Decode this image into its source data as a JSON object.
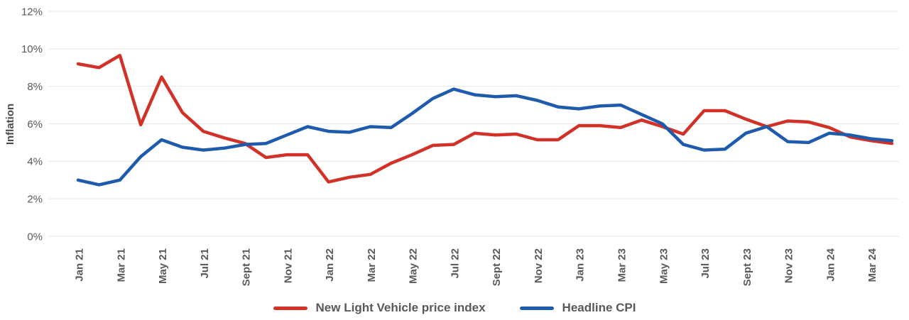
{
  "chart": {
    "y_axis_title": "Inflation",
    "legend": {
      "series1_label": "New Light Vehicle price index",
      "series2_label": "Headline CPI"
    }
  },
  "chart_data": {
    "type": "line",
    "title": "",
    "xlabel": "",
    "ylabel": "Inflation",
    "ylim": [
      0,
      12
    ],
    "ytick_values": [
      0,
      2,
      4,
      6,
      8,
      10,
      12
    ],
    "ytick_labels": [
      "0%",
      "2%",
      "4%",
      "6%",
      "8%",
      "10%",
      "12%"
    ],
    "grid": "horizontal",
    "legend_position": "bottom-center",
    "xtick_every": 2,
    "x": [
      "Jan 21",
      "Feb 21",
      "Mar 21",
      "Apr 21",
      "May 21",
      "Jun 21",
      "Jul 21",
      "Aug 21",
      "Sept 21",
      "Oct 21",
      "Nov 21",
      "Dec 21",
      "Jan 22",
      "Feb 22",
      "Mar 22",
      "Apr 22",
      "May 22",
      "Jun 22",
      "Jul 22",
      "Aug 22",
      "Sept 22",
      "Oct 22",
      "Nov 22",
      "Dec 22",
      "Jan 23",
      "Feb 23",
      "Mar 23",
      "Apr 23",
      "May 23",
      "Jun 23",
      "Jul 23",
      "Aug 23",
      "Sept 23",
      "Oct 23",
      "Nov 23",
      "Dec 23",
      "Jan 24",
      "Feb 24",
      "Mar 24",
      "Apr 24"
    ],
    "series": [
      {
        "name": "New Light Vehicle price index",
        "color": "#d23128",
        "values": [
          9.2,
          9.0,
          9.65,
          5.95,
          8.5,
          6.6,
          5.6,
          5.25,
          4.95,
          4.2,
          4.35,
          4.35,
          2.9,
          3.15,
          3.3,
          3.9,
          4.35,
          4.85,
          4.9,
          5.5,
          5.4,
          5.45,
          5.15,
          5.15,
          5.9,
          5.9,
          5.8,
          6.2,
          5.85,
          5.45,
          6.7,
          6.7,
          6.25,
          5.85,
          6.15,
          6.1,
          5.8,
          5.3,
          5.1,
          4.95
        ]
      },
      {
        "name": "Headline CPI",
        "color": "#1f5bac",
        "values": [
          3.0,
          2.75,
          3.0,
          4.25,
          5.15,
          4.75,
          4.6,
          4.7,
          4.9,
          4.95,
          5.4,
          5.85,
          5.6,
          5.55,
          5.85,
          5.8,
          6.55,
          7.35,
          7.85,
          7.55,
          7.45,
          7.5,
          7.25,
          6.9,
          6.8,
          6.95,
          7.0,
          6.5,
          6.0,
          4.9,
          4.6,
          4.65,
          5.5,
          5.85,
          5.05,
          5.0,
          5.5,
          5.4,
          5.2,
          5.1
        ]
      }
    ]
  }
}
